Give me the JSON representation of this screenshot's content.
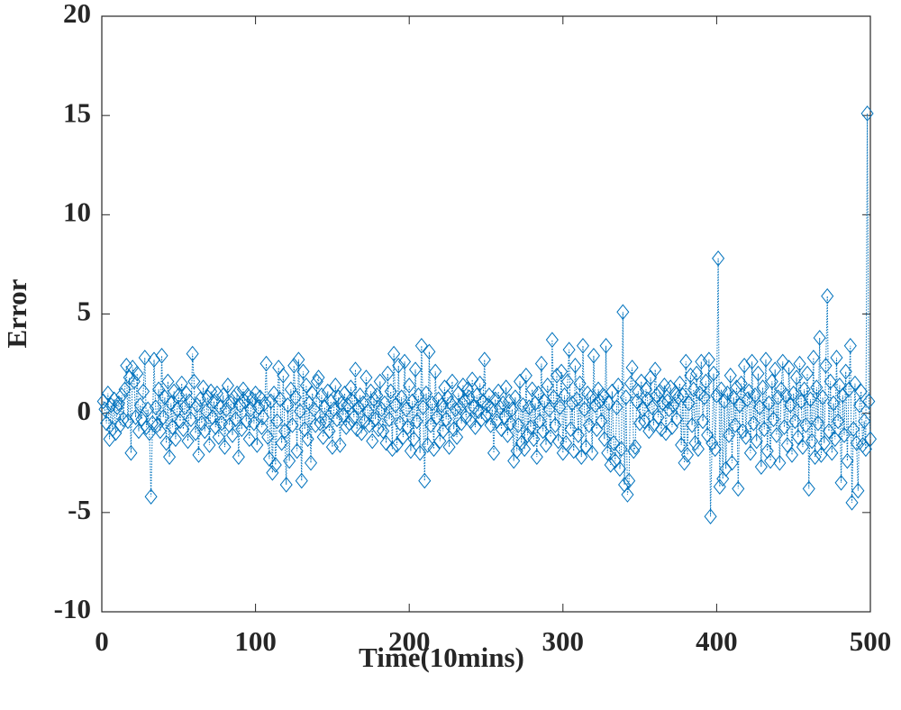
{
  "chart_data": {
    "type": "line",
    "xlabel": "Time(10mins)",
    "ylabel": "Error",
    "xlim": [
      0,
      500
    ],
    "ylim": [
      -10,
      20
    ],
    "xticks": [
      0,
      100,
      200,
      300,
      400,
      500
    ],
    "yticks": [
      -10,
      -5,
      0,
      5,
      10,
      15,
      20
    ],
    "series": [
      {
        "color": "#0072bd",
        "marker": "diamond",
        "x": [
          1,
          2,
          3,
          4,
          5,
          6,
          7,
          8,
          9,
          10,
          11,
          12,
          13,
          14,
          15,
          16,
          17,
          18,
          19,
          20,
          21,
          22,
          23,
          24,
          25,
          26,
          27,
          28,
          29,
          30,
          31,
          32,
          33,
          34,
          35,
          36,
          37,
          38,
          39,
          40,
          41,
          42,
          43,
          44,
          45,
          46,
          47,
          48,
          49,
          50,
          51,
          52,
          53,
          54,
          55,
          56,
          57,
          58,
          59,
          60,
          61,
          62,
          63,
          64,
          65,
          66,
          67,
          68,
          69,
          70,
          71,
          72,
          73,
          74,
          75,
          76,
          77,
          78,
          79,
          80,
          81,
          82,
          83,
          84,
          85,
          86,
          87,
          88,
          89,
          90,
          91,
          92,
          93,
          94,
          95,
          96,
          97,
          98,
          99,
          100,
          101,
          102,
          103,
          104,
          105,
          106,
          107,
          108,
          109,
          110,
          111,
          112,
          113,
          114,
          115,
          116,
          117,
          118,
          119,
          120,
          121,
          122,
          123,
          124,
          125,
          126,
          127,
          128,
          129,
          130,
          131,
          132,
          133,
          134,
          135,
          136,
          137,
          138,
          139,
          140,
          141,
          142,
          143,
          144,
          145,
          146,
          147,
          148,
          149,
          150,
          151,
          152,
          153,
          154,
          155,
          156,
          157,
          158,
          159,
          160,
          161,
          162,
          163,
          164,
          165,
          166,
          167,
          168,
          169,
          170,
          171,
          172,
          173,
          174,
          175,
          176,
          177,
          178,
          179,
          180,
          181,
          182,
          183,
          184,
          185,
          186,
          187,
          188,
          189,
          190,
          191,
          192,
          193,
          194,
          195,
          196,
          197,
          198,
          199,
          200,
          201,
          202,
          203,
          204,
          205,
          206,
          207,
          208,
          209,
          210,
          211,
          212,
          213,
          214,
          215,
          216,
          217,
          218,
          219,
          220,
          221,
          222,
          223,
          224,
          225,
          226,
          227,
          228,
          229,
          230,
          231,
          232,
          233,
          234,
          235,
          236,
          237,
          238,
          239,
          240,
          241,
          242,
          243,
          244,
          245,
          246,
          247,
          248,
          249,
          250,
          251,
          252,
          253,
          254,
          255,
          256,
          257,
          258,
          259,
          260,
          261,
          262,
          263,
          264,
          265,
          266,
          267,
          268,
          269,
          270,
          271,
          272,
          273,
          274,
          275,
          276,
          277,
          278,
          279,
          280,
          281,
          282,
          283,
          284,
          285,
          286,
          287,
          288,
          289,
          290,
          291,
          292,
          293,
          294,
          295,
          296,
          297,
          298,
          299,
          300,
          301,
          302,
          303,
          304,
          305,
          306,
          307,
          308,
          309,
          310,
          311,
          312,
          313,
          314,
          315,
          316,
          317,
          318,
          319,
          320,
          321,
          322,
          323,
          324,
          325,
          326,
          327,
          328,
          329,
          330,
          331,
          332,
          333,
          334,
          335,
          336,
          337,
          338,
          339,
          340,
          341,
          342,
          343,
          344,
          345,
          346,
          347,
          348,
          349,
          350,
          351,
          352,
          353,
          354,
          355,
          356,
          357,
          358,
          359,
          360,
          361,
          362,
          363,
          364,
          365,
          366,
          367,
          368,
          369,
          370,
          371,
          372,
          373,
          374,
          375,
          376,
          377,
          378,
          379,
          380,
          381,
          382,
          383,
          384,
          385,
          386,
          387,
          388,
          389,
          390,
          391,
          392,
          393,
          394,
          395,
          396,
          397,
          398,
          399,
          400,
          401,
          402,
          403,
          404,
          405,
          406,
          407,
          408,
          409,
          410,
          411,
          412,
          413,
          414,
          415,
          416,
          417,
          418,
          419,
          420,
          421,
          422,
          423,
          424,
          425,
          426,
          427,
          428,
          429,
          430,
          431,
          432,
          433,
          434,
          435,
          436,
          437,
          438,
          439,
          440,
          441,
          442,
          443,
          444,
          445,
          446,
          447,
          448,
          449,
          450,
          451,
          452,
          453,
          454,
          455,
          456,
          457,
          458,
          459,
          460,
          461,
          462,
          463,
          464,
          465,
          466,
          467,
          468,
          469,
          470,
          471,
          472,
          473,
          474,
          475,
          476,
          477,
          478,
          479,
          480,
          481,
          482,
          483,
          484,
          485,
          486,
          487,
          488,
          489,
          490,
          491,
          492,
          493,
          494,
          495,
          496,
          497,
          498,
          499,
          500
        ],
        "values": [
          0.6,
          0.2,
          -0.5,
          1.0,
          -1.3,
          0.4,
          -0.8,
          0.7,
          -1.0,
          0.3,
          0.5,
          -0.6,
          0.9,
          -0.3,
          1.2,
          2.4,
          -0.4,
          1.8,
          -2.0,
          2.3,
          1.6,
          -0.2,
          2.0,
          -0.9,
          0.4,
          -0.3,
          1.1,
          2.8,
          -0.7,
          0.2,
          -1.0,
          -4.2,
          -0.5,
          2.7,
          0.3,
          -0.6,
          1.2,
          -0.9,
          2.9,
          -0.2,
          0.8,
          -1.5,
          1.6,
          -2.2,
          0.5,
          -0.7,
          1.1,
          -1.3,
          0.2,
          0.9,
          -0.4,
          1.5,
          -0.8,
          0.3,
          1.0,
          -1.4,
          0.6,
          -0.3,
          3.0,
          1.6,
          -1.0,
          0.4,
          -2.1,
          0.7,
          -0.5,
          1.3,
          -0.9,
          0.1,
          0.8,
          -1.6,
          1.1,
          -0.2,
          0.6,
          -0.7,
          1.0,
          -1.2,
          0.3,
          -0.5,
          0.9,
          -1.7,
          0.2,
          1.4,
          -0.6,
          0.5,
          -1.1,
          0.8,
          -0.3,
          1.0,
          -2.2,
          0.4,
          -0.8,
          1.2,
          0.6,
          -0.4,
          0.9,
          -1.3,
          0.2,
          0.7,
          -0.5,
          1.0,
          -1.6,
          0.3,
          0.8,
          -0.7,
          -0.2,
          0.5,
          2.5,
          -1.2,
          -2.3,
          0.6,
          -3.0,
          1.0,
          -2.6,
          -0.4,
          2.3,
          0.7,
          -1.5,
          1.9,
          -0.9,
          -3.6,
          0.4,
          -2.4,
          1.2,
          -0.6,
          2.4,
          0.8,
          -1.9,
          2.7,
          0.1,
          -3.4,
          2.1,
          -0.8,
          1.4,
          -1.3,
          0.5,
          -2.5,
          1.0,
          0.2,
          -0.6,
          1.6,
          1.8,
          -0.5,
          0.9,
          -1.2,
          0.3,
          -0.4,
          1.1,
          -0.9,
          0.6,
          -1.7,
          0.2,
          1.4,
          -0.3,
          0.8,
          -1.6,
          0.5,
          -0.1,
          1.0,
          -0.7,
          0.4,
          -0.5,
          1.3,
          0.6,
          -0.2,
          2.2,
          -0.8,
          0.3,
          0.9,
          -1.0,
          0.5,
          -0.4,
          1.8,
          0.1,
          -0.6,
          1.1,
          -1.4,
          0.7,
          -0.3,
          0.9,
          -0.8,
          1.6,
          0.2,
          -0.9,
          0.5,
          -1.5,
          2.0,
          -0.3,
          1.1,
          -1.8,
          3.0,
          0.4,
          -1.6,
          2.4,
          -0.5,
          0.8,
          -1.2,
          2.6,
          0.2,
          -0.7,
          1.4,
          -1.9,
          0.6,
          -1.3,
          2.2,
          -0.4,
          0.9,
          -2.0,
          3.4,
          0.3,
          -3.4,
          1.0,
          -1.6,
          3.1,
          -0.6,
          0.5,
          -1.8,
          2.1,
          -0.2,
          0.7,
          -1.4,
          0.4,
          -0.9,
          1.3,
          -0.3,
          0.8,
          -1.7,
          0.5,
          1.6,
          -0.8,
          0.2,
          -1.2,
          1.0,
          0.3,
          -0.5,
          1.4,
          0.6,
          -0.2,
          1.2,
          0.8,
          -0.4,
          1.7,
          0.3,
          -0.7,
          0.9,
          0.1,
          1.5,
          -0.3,
          0.6,
          2.7,
          -0.1,
          0.4,
          0.9,
          -0.6,
          0.2,
          -2.0,
          0.7,
          -0.4,
          1.1,
          0.3,
          -0.8,
          0.5,
          -0.2,
          1.3,
          -1.1,
          0.6,
          -0.5,
          0.2,
          -2.4,
          0.8,
          -1.9,
          -0.6,
          1.6,
          -1.5,
          0.4,
          -1.8,
          1.9,
          -1.1,
          0.3,
          -0.7,
          1.2,
          -1.3,
          0.5,
          -2.2,
          1.0,
          -0.4,
          2.5,
          -0.9,
          0.6,
          -1.6,
          1.4,
          0.2,
          -1.2,
          3.7,
          0.8,
          -0.6,
          1.9,
          -1.4,
          0.3,
          2.1,
          -2.0,
          0.9,
          -1.5,
          1.6,
          3.2,
          -0.8,
          0.5,
          -1.9,
          2.4,
          0.7,
          -1.1,
          1.5,
          -2.2,
          3.4,
          0.2,
          -1.7,
          1.0,
          -0.6,
          0.8,
          -2.0,
          2.9,
          0.4,
          -0.8,
          1.2,
          0.6,
          -0.4,
          0.9,
          -1.3,
          3.4,
          -2.0,
          0.5,
          -2.6,
          1.1,
          -1.5,
          -2.4,
          0.3,
          1.4,
          -2.8,
          -1.8,
          5.1,
          -3.6,
          0.8,
          -4.1,
          -3.4,
          1.5,
          2.3,
          -1.9,
          -1.7,
          0.6,
          1.1,
          -0.5,
          1.6,
          0.2,
          -0.4,
          1.2,
          0.7,
          -0.9,
          1.8,
          0.3,
          -0.6,
          2.2,
          0.9,
          -0.2,
          1.1,
          -0.8,
          0.5,
          1.4,
          -1.0,
          0.6,
          0.2,
          1.3,
          -0.7,
          0.4,
          1.0,
          -0.3,
          0.8,
          1.5,
          -1.6,
          0.9,
          -2.5,
          2.6,
          -2.1,
          0.5,
          1.9,
          -0.6,
          1.2,
          -1.5,
          2.0,
          -1.8,
          1.0,
          2.6,
          -0.4,
          0.8,
          1.6,
          -1.1,
          2.7,
          -5.2,
          -1.5,
          2.0,
          -1.8,
          0.9,
          7.8,
          -3.7,
          1.2,
          -3.3,
          0.6,
          -2.8,
          1.0,
          -1.1,
          1.9,
          -2.5,
          0.8,
          -0.6,
          1.3,
          -3.8,
          0.4,
          1.5,
          -0.9,
          2.4,
          -1.2,
          0.7,
          1.1,
          -2.0,
          2.6,
          -0.5,
          0.9,
          -1.4,
          2.0,
          0.3,
          -2.7,
          1.3,
          -0.8,
          2.7,
          -1.9,
          0.5,
          -2.4,
          1.6,
          -0.3,
          2.2,
          -1.1,
          0.8,
          -2.5,
          1.2,
          2.6,
          -0.7,
          0.9,
          -1.6,
          2.3,
          0.4,
          -2.1,
          1.0,
          -0.4,
          1.8,
          -1.2,
          2.5,
          0.6,
          -1.7,
          1.2,
          -0.6,
          2.0,
          -3.8,
          0.7,
          -1.4,
          2.8,
          -2.2,
          1.3,
          -0.5,
          3.8,
          -2.1,
          0.8,
          -1.5,
          2.4,
          5.9,
          -0.9,
          1.6,
          -2.0,
          0.5,
          -1.3,
          2.8,
          -0.4,
          1.4,
          -3.5,
          0.9,
          -1.1,
          2.1,
          -2.4,
          1.2,
          3.4,
          -4.5,
          -0.8,
          1.5,
          -1.5,
          -3.9,
          0.4,
          1.1,
          -1.6,
          -0.4,
          -1.8,
          15.1,
          0.6,
          -1.3
        ]
      }
    ]
  }
}
